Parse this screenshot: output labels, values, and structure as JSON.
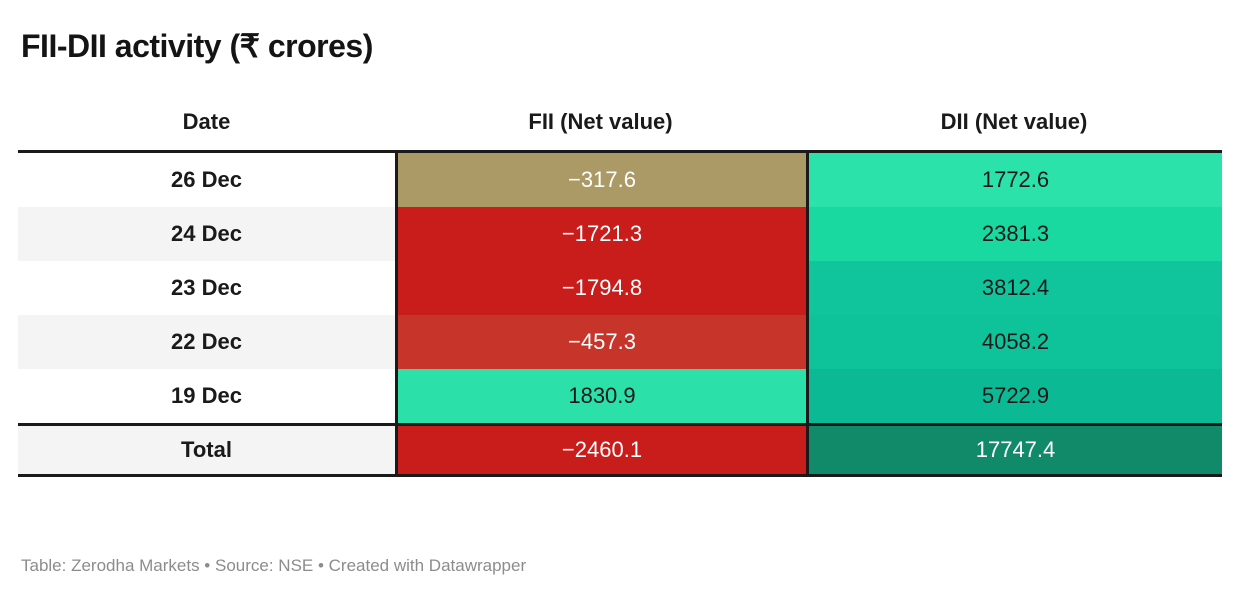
{
  "title": "FII-DII activity (₹ crores)",
  "footer": "Table: Zerodha Markets • Source: NSE • Created with Datawrapper",
  "colors": {
    "negative_strong": "#c91d1c",
    "negative_mild": "#c7352a",
    "negative_weak": "#ab9a65",
    "positive_bright": "#2be2ab",
    "positive_dark": "#108a69",
    "zebra": "#f4f4f4",
    "border": "#1a1a1a",
    "footer_text": "#8c8c8c"
  },
  "table": {
    "columns": {
      "date": "Date",
      "fii": "FII (Net value)",
      "dii": "DII (Net value)"
    },
    "rows": [
      {
        "date": "26 Dec",
        "fii": {
          "text": "−317.6",
          "bg": "#ab9a65",
          "fg": "#ffffff"
        },
        "dii": {
          "text": "1772.6",
          "bg": "#2be2ab",
          "fg": "#1a1a1a"
        }
      },
      {
        "date": "24 Dec",
        "fii": {
          "text": "−1721.3",
          "bg": "#c91d1c",
          "fg": "#ffffff"
        },
        "dii": {
          "text": "2381.3",
          "bg": "#19d8a0",
          "fg": "#1a1a1a"
        }
      },
      {
        "date": "23 Dec",
        "fii": {
          "text": "−1794.8",
          "bg": "#c91d1c",
          "fg": "#ffffff"
        },
        "dii": {
          "text": "3812.4",
          "bg": "#10c59b",
          "fg": "#1a1a1a"
        }
      },
      {
        "date": "22 Dec",
        "fii": {
          "text": "−457.3",
          "bg": "#c7352a",
          "fg": "#ffffff"
        },
        "dii": {
          "text": "4058.2",
          "bg": "#0ec29a",
          "fg": "#1a1a1a"
        }
      },
      {
        "date": "19 Dec",
        "fii": {
          "text": "1830.9",
          "bg": "#2ce0aa",
          "fg": "#1a1a1a"
        },
        "dii": {
          "text": "5722.9",
          "bg": "#0bb995",
          "fg": "#1a1a1a"
        }
      }
    ],
    "total": {
      "date": "Total",
      "fii": {
        "text": "−2460.1",
        "bg": "#c91d1c",
        "fg": "#ffffff"
      },
      "dii": {
        "text": "17747.4",
        "bg": "#108a69",
        "fg": "#ffffff"
      }
    }
  },
  "chart_data": {
    "type": "table",
    "title": "FII-DII activity (₹ crores)",
    "columns": [
      "Date",
      "FII (Net value)",
      "DII (Net value)"
    ],
    "rows": [
      [
        "26 Dec",
        -317.6,
        1772.6
      ],
      [
        "24 Dec",
        -1721.3,
        2381.3
      ],
      [
        "23 Dec",
        -1794.8,
        3812.4
      ],
      [
        "22 Dec",
        -457.3,
        4058.2
      ],
      [
        "19 Dec",
        1830.9,
        5722.9
      ],
      [
        "Total",
        -2460.1,
        17747.4
      ]
    ],
    "legend_position": "none",
    "notes": "Heatmap-colored cells: negative values red/tan, positive values green; darker green = referenced to larger totals"
  }
}
